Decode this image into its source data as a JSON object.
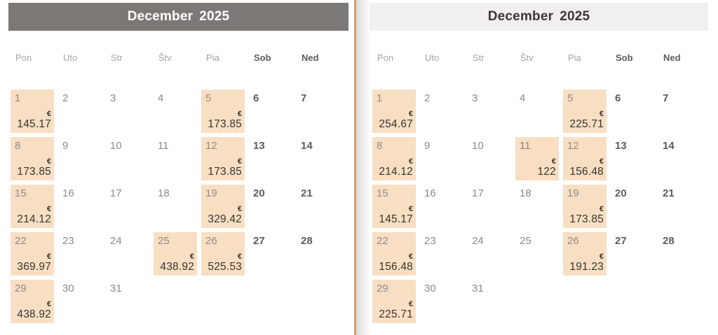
{
  "currency": "€",
  "weekdays": [
    "Pon",
    "Uto",
    "Str",
    "Štv",
    "Pia",
    "Sob",
    "Ned"
  ],
  "colors": {
    "left_header_bg": "#7c7876",
    "left_header_text": "#ffffff",
    "right_header_bg": "#f2f0ee",
    "right_header_text": "#3b3734",
    "price_cell_bg": "#f8dfc3",
    "divider": "#d79e66",
    "weekday_muted_text": "#a6a3a0",
    "weekend_text": "#5f5b57",
    "price_text": "#37332f"
  },
  "calendars": [
    {
      "month": "December",
      "year": "2025",
      "days": [
        {
          "day": "1",
          "price": "145.17"
        },
        {
          "day": "2"
        },
        {
          "day": "3"
        },
        {
          "day": "4"
        },
        {
          "day": "5",
          "price": "173.85"
        },
        {
          "day": "6"
        },
        {
          "day": "7"
        },
        {
          "day": "8",
          "price": "173.85"
        },
        {
          "day": "9"
        },
        {
          "day": "10"
        },
        {
          "day": "11"
        },
        {
          "day": "12",
          "price": "173.85"
        },
        {
          "day": "13"
        },
        {
          "day": "14"
        },
        {
          "day": "15",
          "price": "214.12"
        },
        {
          "day": "16"
        },
        {
          "day": "17"
        },
        {
          "day": "18"
        },
        {
          "day": "19",
          "price": "329.42"
        },
        {
          "day": "20"
        },
        {
          "day": "21"
        },
        {
          "day": "22",
          "price": "369.97"
        },
        {
          "day": "23"
        },
        {
          "day": "24"
        },
        {
          "day": "25",
          "price": "438.92"
        },
        {
          "day": "26",
          "price": "525.53"
        },
        {
          "day": "27"
        },
        {
          "day": "28"
        },
        {
          "day": "29",
          "price": "438.92"
        },
        {
          "day": "30"
        },
        {
          "day": "31"
        }
      ]
    },
    {
      "month": "December",
      "year": "2025",
      "days": [
        {
          "day": "1",
          "price": "254.67"
        },
        {
          "day": "2"
        },
        {
          "day": "3"
        },
        {
          "day": "4"
        },
        {
          "day": "5",
          "price": "225.71"
        },
        {
          "day": "6"
        },
        {
          "day": "7"
        },
        {
          "day": "8",
          "price": "214.12"
        },
        {
          "day": "9"
        },
        {
          "day": "10"
        },
        {
          "day": "11",
          "price": "122"
        },
        {
          "day": "12",
          "price": "156.48"
        },
        {
          "day": "13"
        },
        {
          "day": "14"
        },
        {
          "day": "15",
          "price": "145.17"
        },
        {
          "day": "16"
        },
        {
          "day": "17"
        },
        {
          "day": "18"
        },
        {
          "day": "19",
          "price": "173.85"
        },
        {
          "day": "20"
        },
        {
          "day": "21"
        },
        {
          "day": "22",
          "price": "156.48"
        },
        {
          "day": "23"
        },
        {
          "day": "24"
        },
        {
          "day": "25"
        },
        {
          "day": "26",
          "price": "191.23"
        },
        {
          "day": "27"
        },
        {
          "day": "28"
        },
        {
          "day": "29",
          "price": "225.71"
        },
        {
          "day": "30"
        },
        {
          "day": "31"
        }
      ]
    }
  ]
}
